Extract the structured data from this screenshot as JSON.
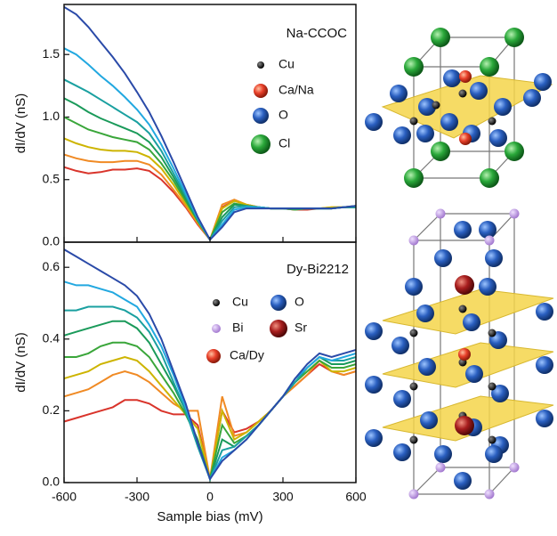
{
  "chart_data": [
    {
      "type": "line",
      "title": "Na-CCOC",
      "ylabel": "dI/dV (nS)",
      "xlim": [
        -600,
        600
      ],
      "ylim": [
        0,
        1.9
      ],
      "yticks": [
        {
          "value": 0,
          "label": "0.0"
        },
        0.5,
        {
          "value": 1,
          "label": "1.0"
        },
        1.5
      ],
      "legend": [
        {
          "label": "Cu",
          "color": "#111111"
        },
        {
          "label": "Ca/Na",
          "color": "#e8402a"
        },
        {
          "label": "O",
          "color": "#2a5fc0"
        },
        {
          "label": "Cl",
          "color": "#2aa83a"
        }
      ],
      "x": [
        -600,
        -550,
        -500,
        -450,
        -400,
        -350,
        -300,
        -250,
        -200,
        -150,
        -100,
        -50,
        0,
        50,
        100,
        150,
        200,
        250,
        300,
        350,
        400,
        450,
        500,
        550,
        600
      ],
      "series": [
        {
          "color": "#d9342b",
          "values": [
            0.6,
            0.57,
            0.55,
            0.56,
            0.58,
            0.58,
            0.59,
            0.57,
            0.5,
            0.4,
            0.28,
            0.14,
            0.02,
            0.28,
            0.33,
            0.3,
            0.28,
            0.27,
            0.27,
            0.26,
            0.26,
            0.27,
            0.27,
            0.28,
            0.28
          ]
        },
        {
          "color": "#f08a24",
          "values": [
            0.7,
            0.67,
            0.65,
            0.64,
            0.64,
            0.65,
            0.65,
            0.62,
            0.54,
            0.42,
            0.29,
            0.15,
            0.02,
            0.3,
            0.34,
            0.3,
            0.28,
            0.27,
            0.27,
            0.26,
            0.27,
            0.27,
            0.28,
            0.28,
            0.29
          ]
        },
        {
          "color": "#cdb400",
          "values": [
            0.83,
            0.79,
            0.76,
            0.74,
            0.73,
            0.73,
            0.72,
            0.68,
            0.59,
            0.46,
            0.31,
            0.16,
            0.02,
            0.27,
            0.33,
            0.3,
            0.28,
            0.27,
            0.27,
            0.27,
            0.27,
            0.27,
            0.28,
            0.28,
            0.29
          ]
        },
        {
          "color": "#3aa63a",
          "values": [
            1.0,
            0.95,
            0.9,
            0.87,
            0.84,
            0.82,
            0.8,
            0.74,
            0.63,
            0.49,
            0.33,
            0.17,
            0.02,
            0.24,
            0.31,
            0.29,
            0.28,
            0.27,
            0.27,
            0.26,
            0.27,
            0.27,
            0.27,
            0.28,
            0.28
          ]
        },
        {
          "color": "#1a9a5a",
          "values": [
            1.15,
            1.1,
            1.04,
            0.99,
            0.95,
            0.91,
            0.87,
            0.8,
            0.68,
            0.52,
            0.35,
            0.17,
            0.02,
            0.2,
            0.3,
            0.29,
            0.28,
            0.27,
            0.27,
            0.27,
            0.27,
            0.27,
            0.27,
            0.28,
            0.28
          ]
        },
        {
          "color": "#1aa0a0",
          "values": [
            1.3,
            1.25,
            1.2,
            1.14,
            1.08,
            1.02,
            0.96,
            0.87,
            0.73,
            0.55,
            0.37,
            0.18,
            0.02,
            0.17,
            0.28,
            0.29,
            0.28,
            0.27,
            0.27,
            0.27,
            0.27,
            0.27,
            0.27,
            0.28,
            0.28
          ]
        },
        {
          "color": "#22a8e0",
          "values": [
            1.55,
            1.5,
            1.42,
            1.33,
            1.25,
            1.16,
            1.06,
            0.94,
            0.78,
            0.59,
            0.39,
            0.19,
            0.02,
            0.14,
            0.26,
            0.28,
            0.28,
            0.27,
            0.27,
            0.27,
            0.27,
            0.27,
            0.27,
            0.28,
            0.29
          ]
        },
        {
          "color": "#2a4aa8",
          "values": [
            1.88,
            1.82,
            1.72,
            1.6,
            1.48,
            1.35,
            1.2,
            1.04,
            0.85,
            0.64,
            0.42,
            0.2,
            0.02,
            0.12,
            0.24,
            0.27,
            0.27,
            0.27,
            0.27,
            0.27,
            0.27,
            0.27,
            0.27,
            0.28,
            0.29
          ]
        }
      ]
    },
    {
      "type": "line",
      "title": "Dy-Bi2212",
      "ylabel": "dI/dV (nS)",
      "xlabel": "Sample bias (mV)",
      "xlim": [
        -600,
        600
      ],
      "ylim": [
        0,
        0.67
      ],
      "xticks": [
        -600,
        -300,
        0,
        300,
        600
      ],
      "yticks": [
        {
          "value": 0,
          "label": "0.0"
        },
        0.2,
        0.4,
        0.6
      ],
      "legend": [
        {
          "label": "Cu",
          "color": "#111111"
        },
        {
          "label": "O",
          "color": "#2a5fc0"
        },
        {
          "label": "Bi",
          "color": "#b48ad8"
        },
        {
          "label": "Sr",
          "color": "#a81e1e"
        },
        {
          "label": "Ca/Dy",
          "color": "#e8402a"
        }
      ],
      "x": [
        -600,
        -550,
        -500,
        -450,
        -400,
        -350,
        -300,
        -250,
        -200,
        -150,
        -100,
        -50,
        0,
        50,
        100,
        150,
        200,
        250,
        300,
        350,
        400,
        450,
        500,
        550,
        600
      ],
      "series": [
        {
          "color": "#d9342b",
          "values": [
            0.17,
            0.18,
            0.19,
            0.2,
            0.21,
            0.23,
            0.23,
            0.22,
            0.2,
            0.19,
            0.19,
            0.16,
            0.01,
            0.2,
            0.14,
            0.15,
            0.17,
            0.2,
            0.24,
            0.27,
            0.3,
            0.33,
            0.31,
            0.3,
            0.31
          ]
        },
        {
          "color": "#f08a24",
          "values": [
            0.24,
            0.25,
            0.26,
            0.28,
            0.3,
            0.31,
            0.3,
            0.28,
            0.25,
            0.22,
            0.2,
            0.2,
            0.01,
            0.24,
            0.13,
            0.14,
            0.17,
            0.2,
            0.24,
            0.27,
            0.3,
            0.34,
            0.31,
            0.3,
            0.31
          ]
        },
        {
          "color": "#cdb400",
          "values": [
            0.29,
            0.3,
            0.31,
            0.33,
            0.34,
            0.35,
            0.34,
            0.31,
            0.27,
            0.23,
            0.19,
            0.15,
            0.01,
            0.2,
            0.12,
            0.14,
            0.17,
            0.2,
            0.24,
            0.28,
            0.31,
            0.34,
            0.31,
            0.31,
            0.32
          ]
        },
        {
          "color": "#3aa63a",
          "values": [
            0.35,
            0.35,
            0.36,
            0.38,
            0.39,
            0.39,
            0.38,
            0.35,
            0.3,
            0.25,
            0.19,
            0.12,
            0.01,
            0.16,
            0.11,
            0.13,
            0.16,
            0.2,
            0.24,
            0.28,
            0.31,
            0.34,
            0.32,
            0.32,
            0.33
          ]
        },
        {
          "color": "#1a9a5a",
          "values": [
            0.41,
            0.42,
            0.43,
            0.44,
            0.45,
            0.45,
            0.43,
            0.39,
            0.33,
            0.27,
            0.2,
            0.11,
            0.01,
            0.12,
            0.1,
            0.13,
            0.16,
            0.2,
            0.24,
            0.28,
            0.32,
            0.35,
            0.33,
            0.33,
            0.34
          ]
        },
        {
          "color": "#1aa0a0",
          "values": [
            0.48,
            0.48,
            0.49,
            0.49,
            0.49,
            0.48,
            0.46,
            0.42,
            0.36,
            0.28,
            0.2,
            0.1,
            0.01,
            0.09,
            0.1,
            0.13,
            0.16,
            0.2,
            0.24,
            0.28,
            0.32,
            0.35,
            0.34,
            0.34,
            0.35
          ]
        },
        {
          "color": "#22a8e0",
          "values": [
            0.56,
            0.55,
            0.55,
            0.54,
            0.53,
            0.51,
            0.49,
            0.44,
            0.38,
            0.3,
            0.21,
            0.11,
            0.01,
            0.07,
            0.09,
            0.12,
            0.16,
            0.2,
            0.24,
            0.29,
            0.32,
            0.35,
            0.34,
            0.35,
            0.36
          ]
        },
        {
          "color": "#2a4aa8",
          "values": [
            0.65,
            0.63,
            0.61,
            0.59,
            0.57,
            0.55,
            0.52,
            0.47,
            0.4,
            0.31,
            0.22,
            0.11,
            0.01,
            0.06,
            0.09,
            0.12,
            0.16,
            0.2,
            0.24,
            0.29,
            0.33,
            0.36,
            0.35,
            0.36,
            0.37
          ]
        }
      ]
    }
  ]
}
